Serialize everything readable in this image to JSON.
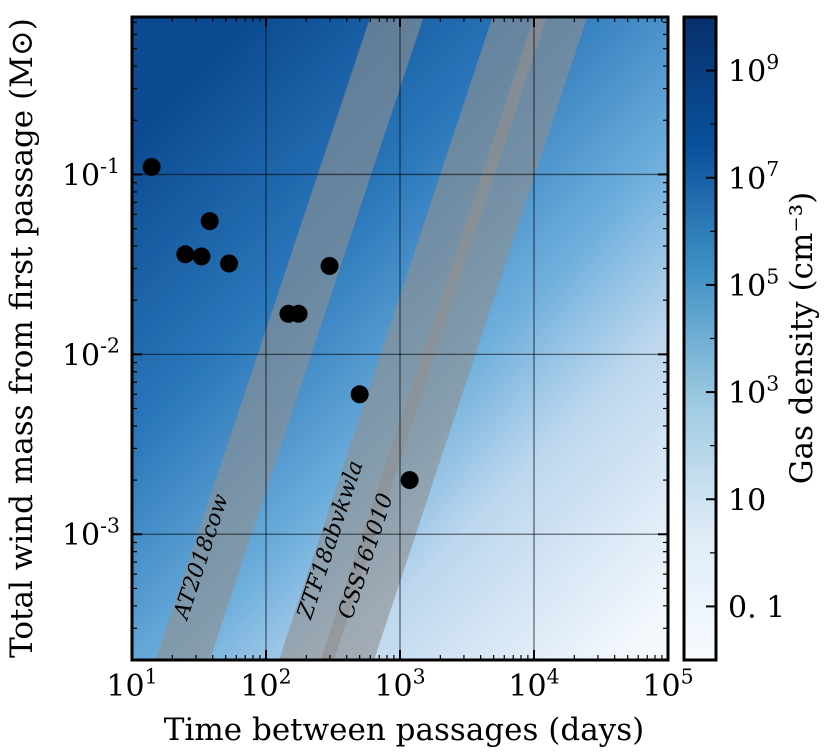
{
  "chart_data": {
    "type": "scatter",
    "xlabel": "Time between passages (days)",
    "ylabel": "Total wind mass from first passage (M⊙)",
    "xscale": "log",
    "yscale": "log",
    "xlim": [
      10,
      100000
    ],
    "ylim": [
      0.0002,
      0.75
    ],
    "x_ticks": [
      {
        "value": 10,
        "base": "10",
        "exp": "1"
      },
      {
        "value": 100,
        "base": "10",
        "exp": "2"
      },
      {
        "value": 1000,
        "base": "10",
        "exp": "3"
      },
      {
        "value": 10000,
        "base": "10",
        "exp": "4"
      },
      {
        "value": 100000,
        "base": "10",
        "exp": "5"
      }
    ],
    "y_ticks": [
      {
        "value": 0.1,
        "base": "10",
        "exp": "-1"
      },
      {
        "value": 0.01,
        "base": "10",
        "exp": "-2"
      },
      {
        "value": 0.001,
        "base": "10",
        "exp": "-3"
      }
    ],
    "grid": true,
    "points": [
      {
        "x": 14,
        "y": 0.11
      },
      {
        "x": 25,
        "y": 0.036
      },
      {
        "x": 33,
        "y": 0.035
      },
      {
        "x": 38,
        "y": 0.055
      },
      {
        "x": 53,
        "y": 0.032
      },
      {
        "x": 147,
        "y": 0.0168
      },
      {
        "x": 175,
        "y": 0.0168
      },
      {
        "x": 298,
        "y": 0.031
      },
      {
        "x": 500,
        "y": 0.006
      },
      {
        "x": 1180,
        "y": 0.002
      }
    ],
    "bands": [
      {
        "label": "AT2018cow",
        "left": [
          {
            "x": 15,
            "y": 0.0002
          },
          {
            "x": 600,
            "y": 0.75
          }
        ],
        "right": [
          {
            "x": 38,
            "y": 0.0002
          },
          {
            "x": 1500,
            "y": 0.75
          }
        ]
      },
      {
        "label": "ZTF18abvkwla",
        "left": [
          {
            "x": 125,
            "y": 0.0002
          },
          {
            "x": 4900,
            "y": 0.75
          }
        ],
        "right": [
          {
            "x": 320,
            "y": 0.0002
          },
          {
            "x": 12500,
            "y": 0.75
          }
        ]
      },
      {
        "label": "CSS161010",
        "left": [
          {
            "x": 255,
            "y": 0.0002
          },
          {
            "x": 10000,
            "y": 0.75
          }
        ],
        "right": [
          {
            "x": 640,
            "y": 0.0002
          },
          {
            "x": 25000,
            "y": 0.75
          }
        ]
      }
    ],
    "colorbar": {
      "label": "Gas density (cm⁻³)",
      "scale": "log",
      "range": [
        0.01,
        10000000000
      ],
      "ticks": [
        {
          "value": 1000000000,
          "base": "10",
          "exp": "9"
        },
        {
          "value": 10000000,
          "base": "10",
          "exp": "7"
        },
        {
          "value": 100000,
          "base": "10",
          "exp": "5"
        },
        {
          "value": 1000,
          "base": "10",
          "exp": "3"
        },
        {
          "value": 10,
          "base": "10",
          "exp": ""
        },
        {
          "value": 0.1,
          "base": "0. 1",
          "exp": ""
        }
      ],
      "colors": [
        "#f7fbff",
        "#deebf7",
        "#9ecae1",
        "#4292c6",
        "#08519c",
        "#08306b"
      ]
    }
  }
}
